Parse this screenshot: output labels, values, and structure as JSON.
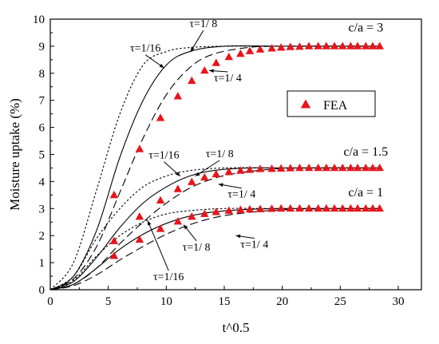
{
  "chart_data": {
    "type": "line",
    "xlabel": "t^0.5",
    "ylabel": "Moisture uptake (%)",
    "xlim": [
      0,
      32
    ],
    "ylim": [
      0,
      10
    ],
    "xticks": [
      0,
      5,
      10,
      15,
      20,
      25,
      30
    ],
    "yticks": [
      0,
      1,
      2,
      3,
      4,
      5,
      6,
      7,
      8,
      9,
      10
    ],
    "grid": false,
    "legend": {
      "placement": "center-right",
      "entries": [
        "FEA"
      ]
    },
    "marker_color": "#e8141b",
    "groups": [
      {
        "label": "c/a = 3",
        "plateau": 9.0,
        "curves": [
          {
            "tau": "1/16",
            "style": "dotted",
            "points": [
              [
                0,
                0
              ],
              [
                2,
                1.0
              ],
              [
                4,
                3.7
              ],
              [
                6,
                6.5
              ],
              [
                8,
                8.3
              ],
              [
                10,
                8.8
              ],
              [
                12,
                8.95
              ],
              [
                15,
                9.0
              ],
              [
                20,
                9.0
              ],
              [
                28.5,
                9.0
              ]
            ]
          },
          {
            "tau": "1/8",
            "style": "solid",
            "points": [
              [
                0,
                0
              ],
              [
                2,
                0.5
              ],
              [
                4,
                2.2
              ],
              [
                6,
                4.9
              ],
              [
                8,
                7.0
              ],
              [
                10,
                8.3
              ],
              [
                12,
                8.8
              ],
              [
                15,
                9.0
              ],
              [
                20,
                9.0
              ],
              [
                28.5,
                9.0
              ]
            ]
          },
          {
            "tau": "1/4",
            "style": "dashed",
            "points": [
              [
                0,
                0
              ],
              [
                2,
                0.4
              ],
              [
                4,
                1.6
              ],
              [
                6,
                3.6
              ],
              [
                8,
                5.6
              ],
              [
                10,
                7.2
              ],
              [
                12,
                8.2
              ],
              [
                14,
                8.7
              ],
              [
                17,
                8.95
              ],
              [
                20,
                9.0
              ],
              [
                28.5,
                9.0
              ]
            ]
          }
        ],
        "fea": {
          "x": [
            5.5,
            7.7,
            9.5,
            11.0,
            12.2,
            13.3,
            14.3,
            15.4,
            16.4,
            17.2,
            18.1,
            19.1,
            19.9,
            20.7,
            21.5,
            22.3,
            23.1,
            23.8,
            24.5,
            25.2,
            25.9,
            26.5,
            27.2,
            27.8,
            28.4
          ],
          "y": [
            3.5,
            5.2,
            6.35,
            7.15,
            7.72,
            8.1,
            8.38,
            8.6,
            8.72,
            8.82,
            8.88,
            8.92,
            8.95,
            8.97,
            8.98,
            9.0,
            9.0,
            9.0,
            9.0,
            9.0,
            9.0,
            9.0,
            9.0,
            9.0,
            9.0
          ]
        }
      },
      {
        "label": "c/a = 1.5",
        "plateau": 4.5,
        "curves": [
          {
            "tau": "1/16",
            "style": "dotted",
            "points": [
              [
                0,
                0
              ],
              [
                2,
                0.5
              ],
              [
                4,
                1.9
              ],
              [
                6,
                3.0
              ],
              [
                8,
                3.8
              ],
              [
                10,
                4.2
              ],
              [
                12,
                4.4
              ],
              [
                15,
                4.5
              ],
              [
                20,
                4.5
              ],
              [
                28.5,
                4.5
              ]
            ]
          },
          {
            "tau": "1/8",
            "style": "solid",
            "points": [
              [
                0,
                0
              ],
              [
                2,
                0.3
              ],
              [
                4,
                1.2
              ],
              [
                6,
                2.3
              ],
              [
                8,
                3.2
              ],
              [
                10,
                3.8
              ],
              [
                12,
                4.2
              ],
              [
                14,
                4.4
              ],
              [
                17,
                4.5
              ],
              [
                20,
                4.5
              ],
              [
                28.5,
                4.5
              ]
            ]
          },
          {
            "tau": "1/4",
            "style": "dashed",
            "points": [
              [
                0,
                0
              ],
              [
                2,
                0.2
              ],
              [
                4,
                0.8
              ],
              [
                6,
                1.7
              ],
              [
                8,
                2.5
              ],
              [
                10,
                3.2
              ],
              [
                12,
                3.75
              ],
              [
                14,
                4.1
              ],
              [
                16,
                4.3
              ],
              [
                19,
                4.45
              ],
              [
                22,
                4.5
              ],
              [
                28.5,
                4.5
              ]
            ]
          }
        ],
        "fea": {
          "x": [
            5.5,
            7.7,
            9.5,
            11.0,
            12.2,
            13.3,
            14.3,
            15.4,
            16.4,
            17.2,
            18.1,
            19.1,
            19.9,
            20.7,
            21.5,
            22.3,
            23.1,
            23.8,
            24.5,
            25.2,
            25.9,
            26.5,
            27.2,
            27.8,
            28.4
          ],
          "y": [
            1.8,
            2.7,
            3.3,
            3.72,
            3.98,
            4.15,
            4.27,
            4.35,
            4.4,
            4.43,
            4.46,
            4.47,
            4.48,
            4.49,
            4.5,
            4.5,
            4.5,
            4.5,
            4.5,
            4.5,
            4.5,
            4.5,
            4.5,
            4.5,
            4.5
          ]
        }
      },
      {
        "label": "c/a = 1",
        "plateau": 3.0,
        "curves": [
          {
            "tau": "1/16",
            "style": "dotted",
            "points": [
              [
                0,
                0
              ],
              [
                2,
                0.35
              ],
              [
                4,
                1.25
              ],
              [
                6,
                2.0
              ],
              [
                8,
                2.5
              ],
              [
                10,
                2.8
              ],
              [
                12,
                2.92
              ],
              [
                15,
                3.0
              ],
              [
                20,
                3.0
              ],
              [
                28.5,
                3.0
              ]
            ]
          },
          {
            "tau": "1/8",
            "style": "solid",
            "points": [
              [
                0,
                0
              ],
              [
                2,
                0.2
              ],
              [
                4,
                0.8
              ],
              [
                6,
                1.5
              ],
              [
                8,
                2.05
              ],
              [
                10,
                2.45
              ],
              [
                12,
                2.72
              ],
              [
                14,
                2.87
              ],
              [
                17,
                2.97
              ],
              [
                20,
                3.0
              ],
              [
                28.5,
                3.0
              ]
            ]
          },
          {
            "tau": "1/4",
            "style": "dashed",
            "points": [
              [
                0,
                0
              ],
              [
                2,
                0.15
              ],
              [
                4,
                0.55
              ],
              [
                6,
                1.1
              ],
              [
                8,
                1.6
              ],
              [
                10,
                2.05
              ],
              [
                12,
                2.4
              ],
              [
                14,
                2.65
              ],
              [
                16,
                2.8
              ],
              [
                19,
                2.93
              ],
              [
                22,
                2.98
              ],
              [
                28.5,
                3.0
              ]
            ]
          }
        ],
        "fea": {
          "x": [
            5.5,
            7.7,
            9.5,
            11.0,
            12.2,
            13.3,
            14.3,
            15.4,
            16.4,
            17.2,
            18.1,
            19.1,
            19.9,
            20.7,
            21.5,
            22.3,
            23.1,
            23.8,
            24.5,
            25.2,
            25.9,
            26.5,
            27.2,
            27.8,
            28.4
          ],
          "y": [
            1.25,
            1.85,
            2.25,
            2.52,
            2.7,
            2.8,
            2.87,
            2.92,
            2.95,
            2.97,
            2.98,
            2.99,
            3.0,
            3.0,
            3.0,
            3.0,
            3.0,
            3.0,
            3.0,
            3.0,
            3.0,
            3.0,
            3.0,
            3.0,
            3.0
          ]
        }
      }
    ],
    "annotations": [
      {
        "text": "τ=1/16",
        "x": 8.2,
        "y": 8.8,
        "arrow_to": [
          9.8,
          8.2
        ]
      },
      {
        "text": "τ=1/ 8",
        "x": 13.2,
        "y": 9.7,
        "arrow_to": [
          12.1,
          8.8
        ]
      },
      {
        "text": "τ=1/ 4",
        "x": 15.3,
        "y": 7.7,
        "arrow_to": [
          13.7,
          8.1
        ]
      },
      {
        "text": "τ=1/16",
        "x": 9.8,
        "y": 4.85,
        "arrow_to": [
          11.2,
          4.2
        ]
      },
      {
        "text": "τ=1/ 8",
        "x": 14.6,
        "y": 4.9,
        "arrow_to": [
          12.5,
          4.2
        ]
      },
      {
        "text": "τ=1/ 4",
        "x": 16.5,
        "y": 3.4,
        "arrow_to": [
          14.5,
          3.9
        ]
      },
      {
        "text": "τ=1/16",
        "x": 10.2,
        "y": 0.35,
        "arrow_to": [
          8.4,
          2.55
        ]
      },
      {
        "text": "τ=1/ 8",
        "x": 12.6,
        "y": 1.45,
        "arrow_to": [
          11.5,
          2.4
        ]
      },
      {
        "text": "τ=1/ 4",
        "x": 17.6,
        "y": 1.55,
        "arrow_to": [
          16.0,
          2.0
        ]
      }
    ],
    "case_labels": [
      {
        "text": "c/a = 3",
        "x": 27.2,
        "y": 9.55
      },
      {
        "text": "c/a = 1.5",
        "x": 27.2,
        "y": 4.95
      },
      {
        "text": "c/a = 1",
        "x": 27.2,
        "y": 3.45
      }
    ]
  }
}
